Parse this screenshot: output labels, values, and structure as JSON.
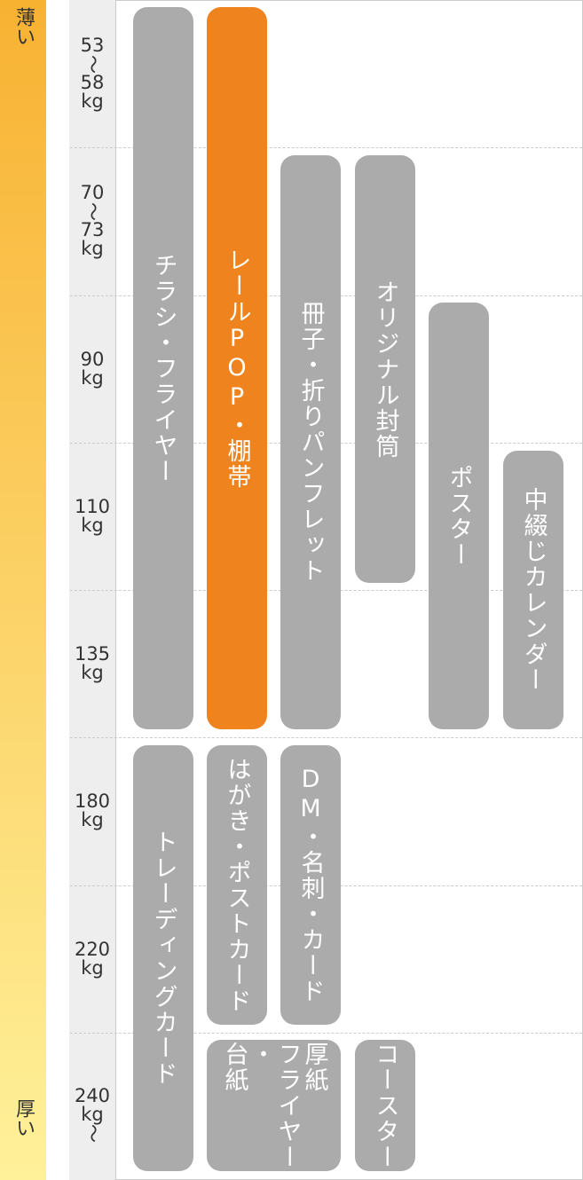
{
  "thickness": {
    "thin": "薄い",
    "thick": "厚い"
  },
  "weights": [
    [
      "53",
      "～",
      "58",
      "kg"
    ],
    [
      "70",
      "～",
      "73",
      "kg"
    ],
    [
      "90",
      "kg"
    ],
    [
      "110",
      "kg"
    ],
    [
      "135",
      "kg"
    ],
    [
      "180",
      "kg"
    ],
    [
      "220",
      "kg"
    ],
    [
      "240",
      "kg",
      "～"
    ]
  ],
  "items": [
    {
      "label": "チラシ・フライヤー",
      "highlighted": false
    },
    {
      "label": "レールPOP・棚帯",
      "highlighted": true
    },
    {
      "label": "冊子・折りパンフレット",
      "highlighted": false
    },
    {
      "label": "オリジナル封筒",
      "highlighted": false
    },
    {
      "label": "ポスター",
      "highlighted": false
    },
    {
      "label": "中綴じカレンダー",
      "highlighted": false
    },
    {
      "label": "トレーディングカード",
      "highlighted": false
    },
    {
      "label": "はがき・ポストカード",
      "highlighted": false
    },
    {
      "label": "DM・名刺・カード",
      "highlighted": false
    },
    {
      "lines": [
        "厚紙",
        "フライヤー",
        "・",
        "台紙"
      ],
      "highlighted": false
    },
    {
      "label": "コースター",
      "highlighted": false
    }
  ]
}
